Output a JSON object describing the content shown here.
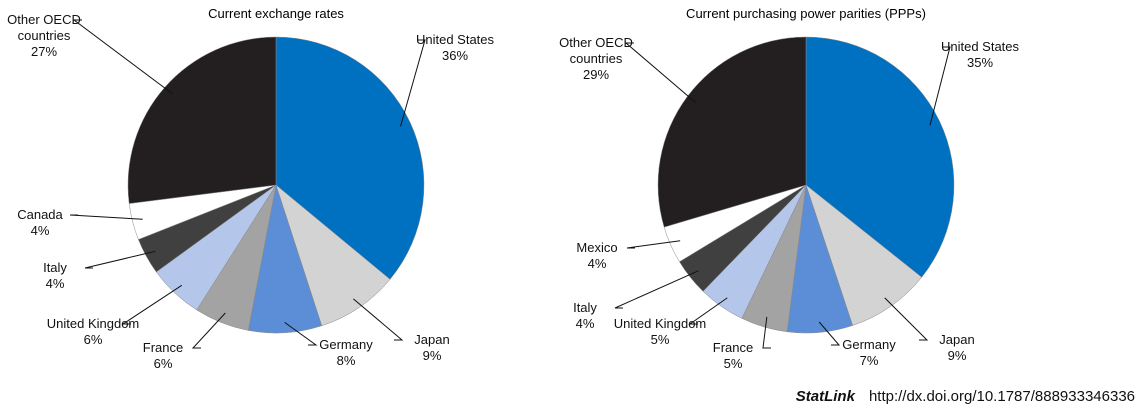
{
  "chart_data": [
    {
      "type": "pie",
      "title": "Current exchange rates",
      "categories": [
        "United States",
        "Japan",
        "Germany",
        "France",
        "United Kingdom",
        "Italy",
        "Canada",
        "Other OECD countries"
      ],
      "values": [
        36,
        9,
        8,
        6,
        6,
        4,
        4,
        27
      ],
      "value_labels": [
        "36%",
        "9%",
        "8%",
        "6%",
        "6%",
        "4%",
        "4%",
        "27%"
      ],
      "colors": [
        "#0070c0",
        "#d3d3d3",
        "#5b8ed6",
        "#a3a3a3",
        "#b4c6ea",
        "#404040",
        "#ffffff",
        "#231f20"
      ]
    },
    {
      "type": "pie",
      "title": "Current purchasing power parities (PPPs)",
      "categories": [
        "United States",
        "Japan",
        "Germany",
        "France",
        "United Kingdom",
        "Italy",
        "Mexico",
        "Other OECD countries"
      ],
      "values": [
        35,
        9,
        7,
        5,
        5,
        4,
        4,
        29
      ],
      "value_labels": [
        "35%",
        "9%",
        "7%",
        "5%",
        "5%",
        "4%",
        "4%",
        "29%"
      ],
      "colors": [
        "#0070c0",
        "#d3d3d3",
        "#5b8ed6",
        "#a3a3a3",
        "#b4c6ea",
        "#404040",
        "#ffffff",
        "#231f20"
      ]
    }
  ],
  "footer": {
    "brand": "StatLink",
    "url": "http://dx.doi.org/10.1787/888933346336"
  }
}
